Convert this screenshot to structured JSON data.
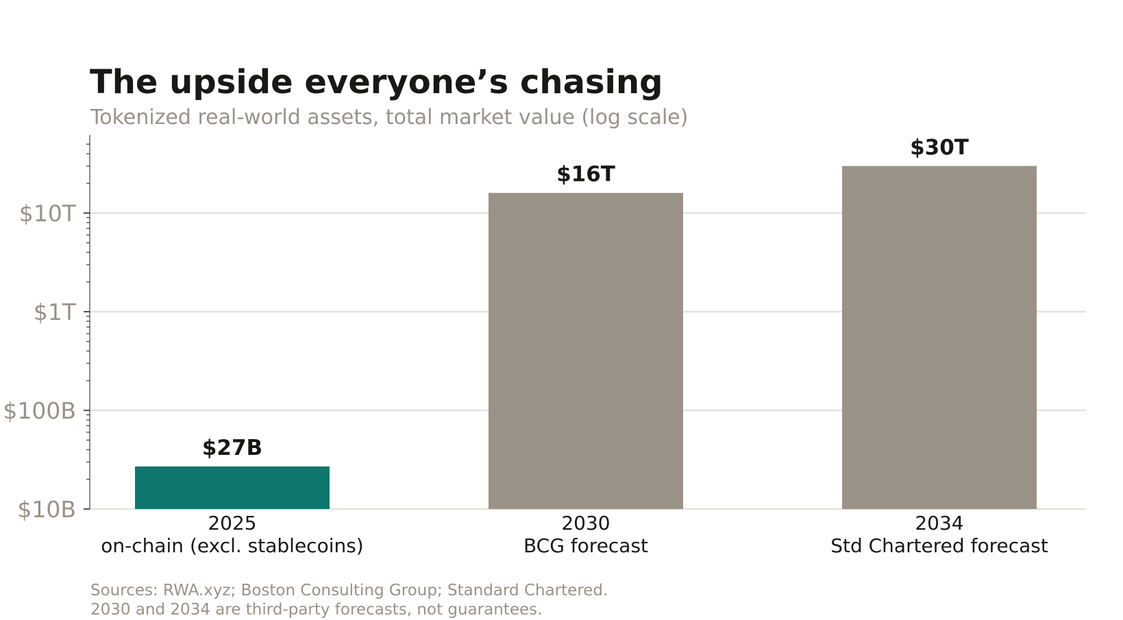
{
  "header": {
    "title": "The upside everyone’s chasing",
    "subtitle": "Tokenized real-world assets, total market value (log scale)"
  },
  "footer": {
    "source_line1": "Sources: RWA.xyz; Boston Consulting Group; Standard Chartered.",
    "source_line2": "2030 and 2034 are third-party forecasts, not guarantees."
  },
  "chart_data": {
    "type": "bar",
    "title": "The upside everyone’s chasing",
    "subtitle": "Tokenized real-world assets, total market value (log scale)",
    "y_scale": "log",
    "y_unit": "USD billions",
    "ylim": [
      10,
      58000
    ],
    "y_ticks": [
      {
        "value": 10,
        "label": "$10B"
      },
      {
        "value": 100,
        "label": "$100B"
      },
      {
        "value": 1000,
        "label": "$1T"
      },
      {
        "value": 10000,
        "label": "$10T"
      }
    ],
    "grid": "horizontal",
    "categories": [
      {
        "year": "2025",
        "desc": "on-chain (excl. stablecoins)"
      },
      {
        "year": "2030",
        "desc": "BCG forecast"
      },
      {
        "year": "2034",
        "desc": "Std Chartered forecast"
      }
    ],
    "values": [
      27,
      16000,
      30000
    ],
    "value_labels": [
      "$27B",
      "$16T",
      "$30T"
    ],
    "colors": [
      "#0f766e",
      "#9a9286",
      "#9a9286"
    ],
    "grid_color": "#e6e2da",
    "axis_color": "#1a1814"
  }
}
